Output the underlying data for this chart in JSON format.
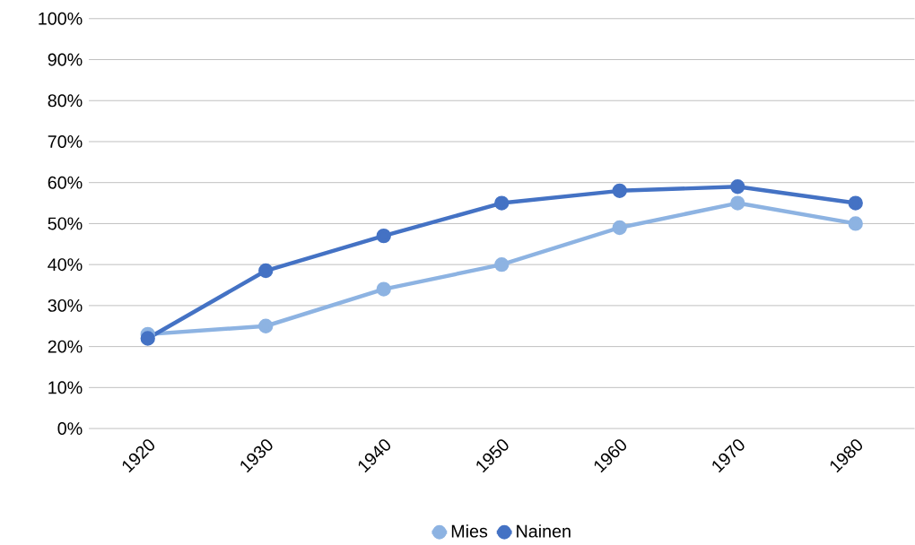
{
  "chart_data": {
    "type": "line",
    "categories": [
      "1920",
      "1930",
      "1940",
      "1950",
      "1960",
      "1970",
      "1980"
    ],
    "series": [
      {
        "name": "Mies",
        "color": "#8db3e2",
        "values": [
          23,
          25,
          34,
          40,
          49,
          55,
          50
        ]
      },
      {
        "name": "Nainen",
        "color": "#4472c4",
        "values": [
          22,
          38.5,
          47,
          55,
          58,
          59,
          55
        ]
      }
    ],
    "ylim": [
      0,
      100
    ],
    "yticks": [
      {
        "value": 0,
        "label": "0%"
      },
      {
        "value": 10,
        "label": "10%"
      },
      {
        "value": 20,
        "label": "20%"
      },
      {
        "value": 30,
        "label": "30%"
      },
      {
        "value": 40,
        "label": "40%"
      },
      {
        "value": 50,
        "label": "50%"
      },
      {
        "value": 60,
        "label": "60%"
      },
      {
        "value": 70,
        "label": "70%"
      },
      {
        "value": 80,
        "label": "80%"
      },
      {
        "value": 90,
        "label": "90%"
      },
      {
        "value": 100,
        "label": "100%"
      }
    ],
    "grid": "y",
    "legend": "bottom",
    "marker": "circle",
    "line_style": "solid"
  }
}
